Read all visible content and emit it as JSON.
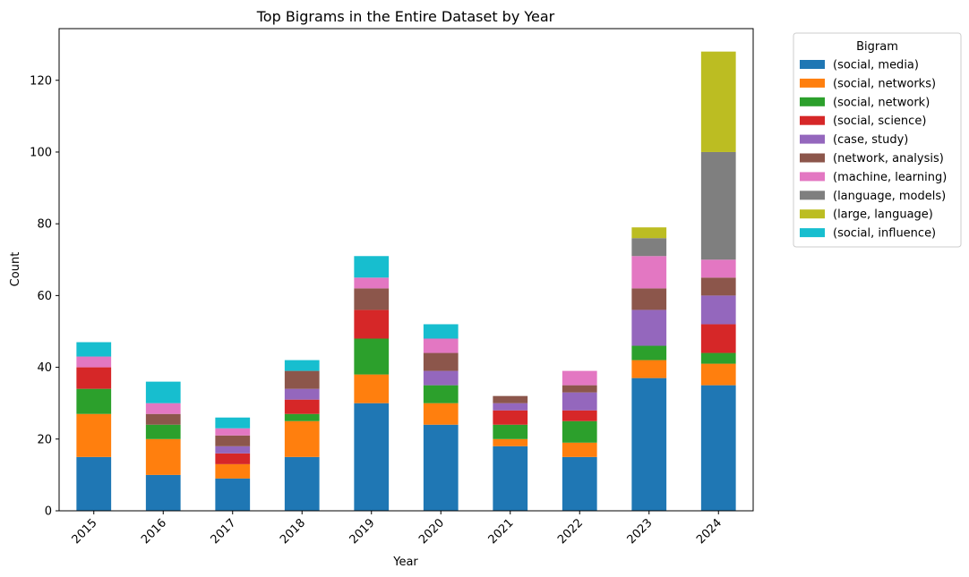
{
  "chart_data": {
    "type": "bar",
    "stacked": true,
    "title": "Top Bigrams in the Entire Dataset by Year",
    "xlabel": "Year",
    "ylabel": "Count",
    "ylim": [
      0,
      134.4
    ],
    "yticks": [
      0,
      20,
      40,
      60,
      80,
      100,
      120
    ],
    "legend": {
      "title": "Bigram",
      "placement": "outside-top-right"
    },
    "categories": [
      "2015",
      "2016",
      "2017",
      "2018",
      "2019",
      "2020",
      "2021",
      "2022",
      "2023",
      "2024"
    ],
    "series": [
      {
        "name": "(social, media)",
        "color": "#1f77b4",
        "values": [
          15,
          10,
          9,
          15,
          30,
          24,
          18,
          15,
          37,
          35
        ]
      },
      {
        "name": "(social, networks)",
        "color": "#ff7f0e",
        "values": [
          12,
          10,
          4,
          10,
          8,
          6,
          2,
          4,
          5,
          6
        ]
      },
      {
        "name": "(social, network)",
        "color": "#2ca02c",
        "values": [
          7,
          4,
          0,
          2,
          10,
          5,
          4,
          6,
          4,
          3
        ]
      },
      {
        "name": "(social, science)",
        "color": "#d62728",
        "values": [
          6,
          0,
          3,
          4,
          8,
          0,
          4,
          3,
          0,
          8
        ]
      },
      {
        "name": "(case, study)",
        "color": "#9467bd",
        "values": [
          0,
          0,
          2,
          3,
          0,
          4,
          2,
          5,
          10,
          8
        ]
      },
      {
        "name": "(network, analysis)",
        "color": "#8c564b",
        "values": [
          0,
          3,
          3,
          5,
          6,
          5,
          2,
          2,
          6,
          5
        ]
      },
      {
        "name": "(machine, learning)",
        "color": "#e377c2",
        "values": [
          3,
          3,
          2,
          0,
          3,
          4,
          0,
          4,
          9,
          5
        ]
      },
      {
        "name": "(language, models)",
        "color": "#7f7f7f",
        "values": [
          0,
          0,
          0,
          0,
          0,
          0,
          0,
          0,
          5,
          30
        ]
      },
      {
        "name": "(large, language)",
        "color": "#bcbd22",
        "values": [
          0,
          0,
          0,
          0,
          0,
          0,
          0,
          0,
          3,
          28
        ]
      },
      {
        "name": "(social, influence)",
        "color": "#17becf",
        "values": [
          4,
          6,
          3,
          3,
          6,
          4,
          0,
          0,
          0,
          0
        ]
      }
    ]
  }
}
